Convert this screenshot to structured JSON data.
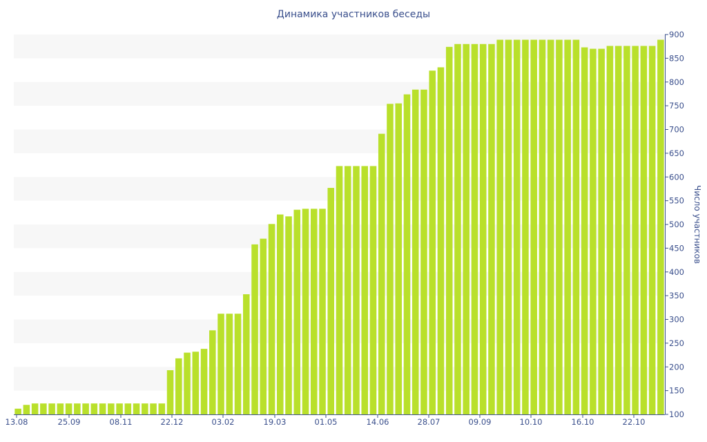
{
  "chart_data": {
    "type": "bar",
    "title": "Динамика участников беседы",
    "xlabel": "",
    "ylabel": "Число участников",
    "ylim": [
      100,
      900
    ],
    "yticks": [
      100,
      150,
      200,
      250,
      300,
      350,
      400,
      450,
      500,
      550,
      600,
      650,
      700,
      750,
      800,
      850,
      900
    ],
    "y_axis_position": "right",
    "grid": "alternating horizontal bands",
    "bar_color": "#b9e02b",
    "band_color": "#f7f7f7",
    "axis_color": "#3a4f8c",
    "xticklabels": [
      "13.08",
      "25.09",
      "08.11",
      "22.12",
      "03.02",
      "19.03",
      "01.05",
      "14.06",
      "28.07",
      "09.09",
      "10.10",
      "16.10",
      "22.10"
    ],
    "values": [
      112,
      120,
      123,
      123,
      123,
      123,
      123,
      123,
      123,
      123,
      123,
      123,
      123,
      123,
      123,
      123,
      123,
      123,
      193,
      218,
      230,
      232,
      238,
      277,
      312,
      312,
      312,
      353,
      458,
      470,
      501,
      521,
      517,
      531,
      533,
      533,
      533,
      577,
      623,
      623,
      623,
      623,
      623,
      691,
      754,
      755,
      774,
      784,
      784,
      824,
      831,
      874,
      880,
      880,
      880,
      880,
      880,
      889,
      889,
      889,
      889,
      889,
      889,
      889,
      889,
      889,
      889,
      873,
      870,
      870,
      876,
      876,
      876,
      876,
      876,
      876,
      889
    ]
  }
}
